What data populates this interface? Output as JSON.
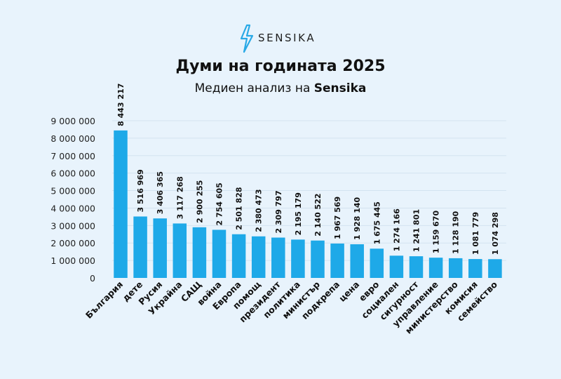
{
  "brand": {
    "name": "SENSIKA",
    "logo_icon": "lightning-bolt-icon",
    "accent": "#29a9e6"
  },
  "header": {
    "title": "Думи на годината 2025",
    "subtitle_prefix": "Медиен анализ на ",
    "subtitle_brand": "Sensika"
  },
  "chart_data": {
    "type": "bar",
    "title": "Думи на годината 2025",
    "subtitle": "Медиен анализ на Sensika",
    "xlabel": "",
    "ylabel": "",
    "ylim": [
      0,
      9000000
    ],
    "y_ticks": [
      0,
      1000000,
      2000000,
      3000000,
      4000000,
      5000000,
      6000000,
      7000000,
      8000000,
      9000000
    ],
    "y_tick_labels": [
      "0",
      "1 000 000",
      "2 000 000",
      "3 000 000",
      "4 000 000",
      "5 000 000",
      "6 000 000",
      "7 000 000",
      "8 000 000",
      "9 000 000"
    ],
    "grid": true,
    "bar_color": "#1ea9e8",
    "categories": [
      "България",
      "дете",
      "Русия",
      "Украйна",
      "САЩ",
      "война",
      "Европа",
      "помощ",
      "президент",
      "политика",
      "министър",
      "подкрепа",
      "цена",
      "евро",
      "социален",
      "сигурност",
      "управление",
      "министерство",
      "комисия",
      "семейство"
    ],
    "values": [
      8443217,
      3516969,
      3406365,
      3117268,
      2900255,
      2754605,
      2501828,
      2380473,
      2309797,
      2195179,
      2140522,
      1967569,
      1928140,
      1675445,
      1274166,
      1241801,
      1159670,
      1128190,
      1081779,
      1074298
    ],
    "value_labels": [
      "8 443 217",
      "3 516 969",
      "3 406 365",
      "3 117 268",
      "2 900 255",
      "2 754 605",
      "2 501 828",
      "2 380 473",
      "2 309 797",
      "2 195 179",
      "2 140 522",
      "1 967 569",
      "1 928 140",
      "1 675 445",
      "1 274 166",
      "1 241 801",
      "1 159 670",
      "1 128 190",
      "1 081 779",
      "1 074 298"
    ]
  }
}
